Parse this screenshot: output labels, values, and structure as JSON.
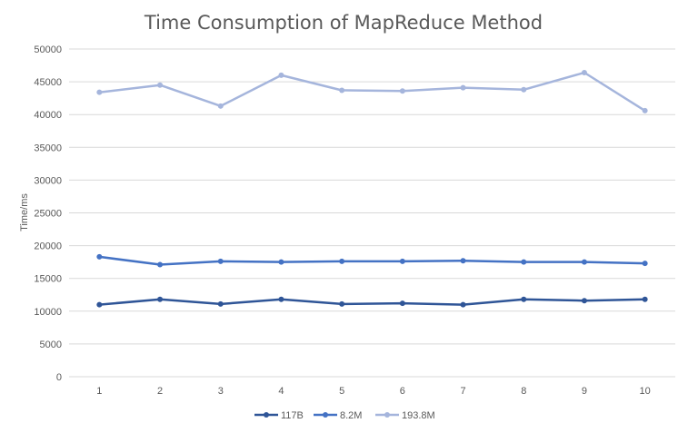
{
  "chart_data": {
    "type": "line",
    "title": "Time Consumption of MapReduce Method",
    "xlabel": "",
    "ylabel": "Time/ms",
    "x": [
      1,
      2,
      3,
      4,
      5,
      6,
      7,
      8,
      9,
      10
    ],
    "ylim": [
      0,
      50000
    ],
    "yticks": [
      0,
      5000,
      10000,
      15000,
      20000,
      25000,
      30000,
      35000,
      40000,
      45000,
      50000
    ],
    "grid": true,
    "legend": "bottom",
    "series": [
      {
        "name": "117B",
        "color": "#2f5597",
        "values": [
          11000,
          11800,
          11100,
          11800,
          11100,
          11200,
          11000,
          11800,
          11600,
          11800
        ]
      },
      {
        "name": "8.2M",
        "color": "#4472c4",
        "values": [
          18300,
          17100,
          17600,
          17500,
          17600,
          17600,
          17700,
          17500,
          17500,
          17300
        ]
      },
      {
        "name": "193.8M",
        "color": "#a5b5dc",
        "values": [
          43400,
          44500,
          41300,
          46000,
          43700,
          43600,
          44100,
          43800,
          46400,
          40600
        ]
      }
    ]
  }
}
